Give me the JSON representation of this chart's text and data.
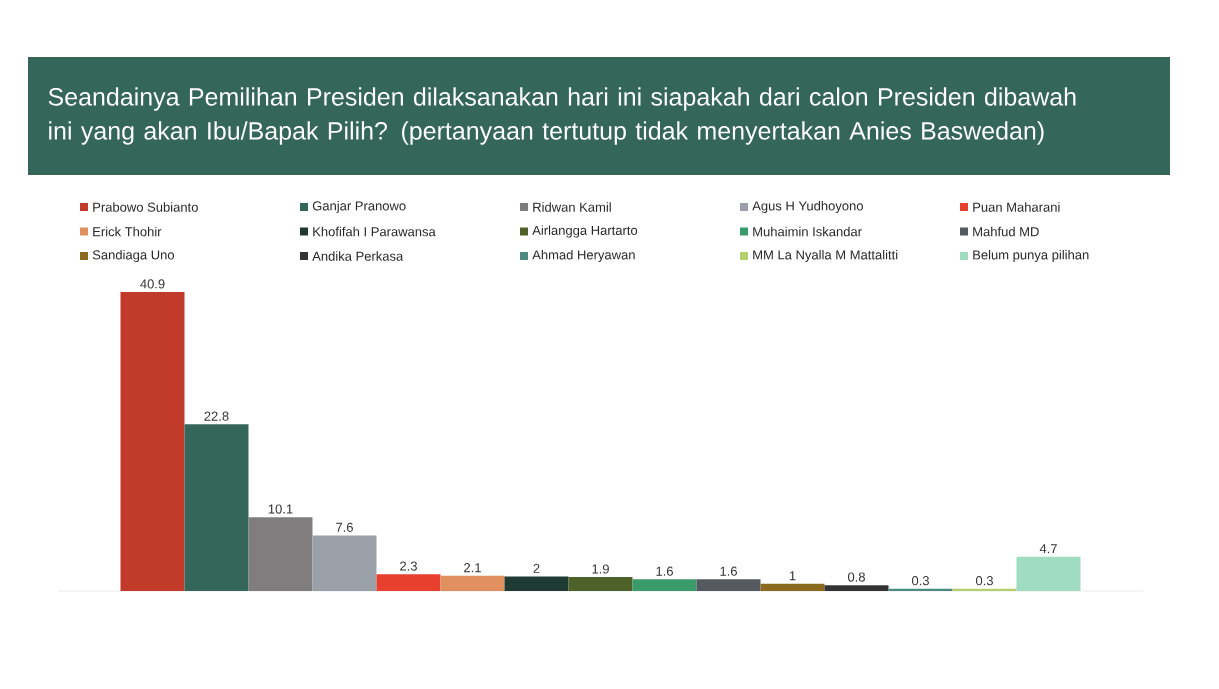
{
  "chart_data": {
    "type": "bar",
    "title": "Seandainya Pemilihan Presiden dilaksanakan hari ini siapakah dari calon Presiden dibawah ini yang akan Ibu/Bapak Pilih? (pertanyaan tertutup tidak menyertakan Anies Baswedan)",
    "categories": [
      null
    ],
    "data_labels": true,
    "legend": "top",
    "series": [
      {
        "name": "Prabowo Subianto",
        "color": "#c23b2a",
        "values": [
          40.9
        ]
      },
      {
        "name": "Ganjar Pranowo",
        "color": "#35665a",
        "values": [
          22.8
        ]
      },
      {
        "name": "Ridwan Kamil",
        "color": "#807d7e",
        "values": [
          10.1
        ]
      },
      {
        "name": "Agus H Yudhoyono",
        "color": "#9aa0a8",
        "values": [
          7.6
        ]
      },
      {
        "name": "Puan Maharani",
        "color": "#e8402f",
        "values": [
          2.3
        ]
      },
      {
        "name": "Erick Thohir",
        "color": "#e0905e",
        "values": [
          2.1
        ]
      },
      {
        "name": "Khofifah I Parawansa",
        "color": "#1e3a32",
        "values": [
          2
        ]
      },
      {
        "name": "Airlangga Hartarto",
        "color": "#4e6128",
        "values": [
          1.9
        ]
      },
      {
        "name": "Muhaimin Iskandar",
        "color": "#3a9a6a",
        "values": [
          1.6
        ]
      },
      {
        "name": "Mahfud MD",
        "color": "#555a60",
        "values": [
          1.6
        ]
      },
      {
        "name": "Sandiaga Uno",
        "color": "#8a6a1e",
        "values": [
          1
        ]
      },
      {
        "name": "Andika Perkasa",
        "color": "#333333",
        "values": [
          0.8
        ]
      },
      {
        "name": "Ahmad Heryawan",
        "color": "#4a8a80",
        "values": [
          0.3
        ]
      },
      {
        "name": "MM La Nyalla M Mattalitti",
        "color": "#b5cf6b",
        "values": [
          0.3
        ]
      },
      {
        "name": "Belum punya pilihan",
        "color": "#a0dcc0",
        "values": [
          4.7
        ]
      }
    ]
  }
}
